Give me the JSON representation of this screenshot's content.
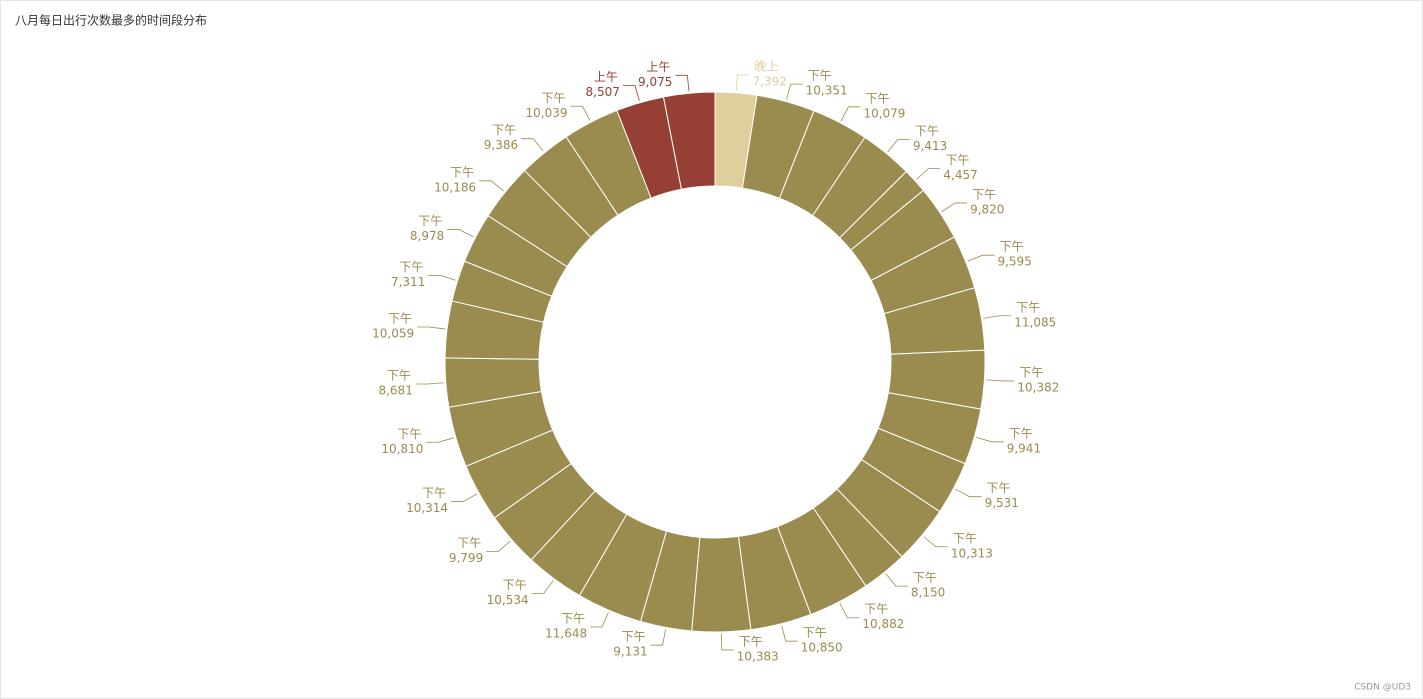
{
  "chart_data": {
    "type": "pie",
    "title": "八月每日出行次数最多的时间段分布",
    "categories": [
      "晚上",
      "下午",
      "下午",
      "下午",
      "下午",
      "下午",
      "下午",
      "下午",
      "下午",
      "下午",
      "下午",
      "下午",
      "下午",
      "下午",
      "下午",
      "下午",
      "下午",
      "下午",
      "下午",
      "下午",
      "下午",
      "下午",
      "下午",
      "下午",
      "下午",
      "下午",
      "下午",
      "下午",
      "下午",
      "上午",
      "上午"
    ],
    "values": [
      7392,
      10351,
      10079,
      9413,
      4457,
      9820,
      9595,
      11085,
      10382,
      9941,
      9531,
      10313,
      8150,
      10882,
      10850,
      10383,
      9131,
      11648,
      10534,
      9799,
      10314,
      10810,
      8681,
      10059,
      7311,
      8978,
      10186,
      9386,
      10039,
      8507,
      9075
    ],
    "value_labels": [
      "7,392",
      "10,351",
      "10,079",
      "9,413",
      "4,457",
      "9,820",
      "9,595",
      "11,085",
      "10,382",
      "9,941",
      "9,531",
      "10,313",
      "8,150",
      "10,882",
      "10,850",
      "10,383",
      "9,131",
      "11,648",
      "10,534",
      "9,799",
      "10,314",
      "10,810",
      "8,681",
      "10,059",
      "7,311",
      "8,978",
      "10,186",
      "9,386",
      "10,039",
      "8,507",
      "9,075"
    ],
    "colors": {
      "晚上": "#dfcf9d",
      "下午": "#9a8c4f",
      "上午": "#963f35"
    }
  },
  "watermark": "CSDN @UD3"
}
